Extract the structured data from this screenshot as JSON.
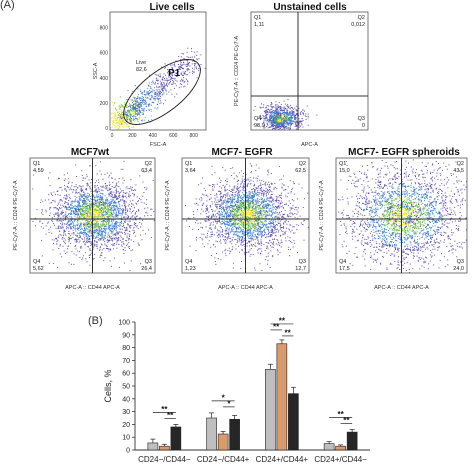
{
  "panel_a_label": "(A)",
  "panel_b_label": "(B)",
  "flow_plots": [
    {
      "id": "live",
      "title": "Live cells",
      "xlabel": "FSC-A",
      "ylabel": "SSC-A",
      "gate_label": "Live",
      "gate_value": "82,6",
      "gate_name": "P1",
      "x_ticks": [
        "0",
        "200",
        "400",
        "600",
        "800"
      ],
      "y_ticks": [
        "0",
        "200",
        "400",
        "600",
        "800"
      ]
    },
    {
      "id": "unstained",
      "title": "Unstained cells",
      "xlabel": "APC-A",
      "ylabel": "PE-Cy7-A :: CD24 PE-Cy7-A",
      "quadrants": {
        "q1": "Q1",
        "q1_val": "1,11",
        "q2": "Q2",
        "q2_val": "0,012",
        "q3": "Q3",
        "q3_val": "0",
        "q4": "Q4",
        "q4_val": "98,9"
      }
    },
    {
      "id": "mcf7wt",
      "title": "MCF7wt",
      "xlabel": "APC-A :: CD44 APC-A",
      "ylabel": "PE-Cy7-A :: CD24 PE-Cy7-A",
      "quadrants": {
        "q1": "Q1",
        "q1_val": "4,59",
        "q2": "Q2",
        "q2_val": "63,4",
        "q3": "Q3",
        "q3_val": "26,4",
        "q4": "Q4",
        "q4_val": "5,62"
      }
    },
    {
      "id": "mcf7egfr",
      "title": "MCF7- EGFR",
      "xlabel": "APC-A :: CD44 APC-A",
      "ylabel": "PE-Cy7-A :: CD24 PE-Cy7-A",
      "quadrants": {
        "q1": "Q1",
        "q1_val": "3,64",
        "q2": "Q2",
        "q2_val": "62,5",
        "q3": "Q3",
        "q3_val": "12,7",
        "q4": "Q4",
        "q4_val": "1,23"
      }
    },
    {
      "id": "mcf7egfrsph",
      "title": "MCF7- EGFR spheroids",
      "xlabel": "APC-A :: CD44 APC-A",
      "ylabel": "PE-Cy7-A :: CD24 PE-Cy7-A",
      "quadrants": {
        "q1": "Q1",
        "q1_val": "15,0",
        "q2": "Q2",
        "q2_val": "43,5",
        "q3": "Q3",
        "q3_val": "24,0",
        "q4": "Q4",
        "q4_val": "17,5"
      }
    }
  ],
  "chart_data": {
    "type": "bar",
    "ylabel": "Cells, %",
    "xlabel": "",
    "ylim": [
      0,
      100
    ],
    "y_ticks": [
      "0",
      "10",
      "20",
      "30",
      "40",
      "50",
      "60",
      "70",
      "80",
      "90",
      "100"
    ],
    "categories": [
      "CD24−/CD44−",
      "CD24−/CD44+",
      "CD24+/CD44+",
      "CD24+/CD44−"
    ],
    "series": [
      {
        "values": [
          5.5,
          25,
          63,
          5
        ],
        "errors": [
          3,
          4,
          4,
          1.5
        ],
        "color": "#bfbfbf"
      },
      {
        "values": [
          3,
          12.5,
          83,
          3
        ],
        "errors": [
          1.5,
          2,
          3,
          1
        ],
        "color": "#d99a6c"
      },
      {
        "values": [
          18,
          24,
          44,
          14
        ],
        "errors": [
          2,
          3,
          5,
          2
        ],
        "color": "#262626"
      }
    ],
    "significance_label": "**",
    "significance_label_single": "*"
  }
}
